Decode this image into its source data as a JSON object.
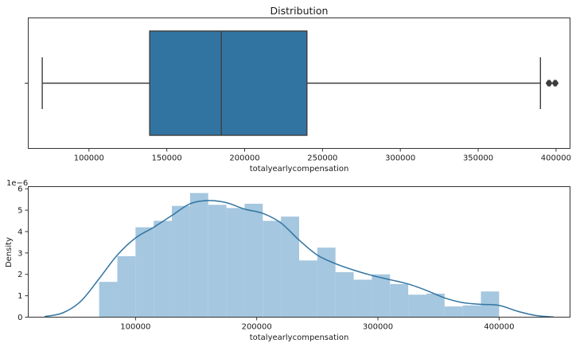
{
  "chart_data": [
    {
      "type": "box",
      "title": "Distribution",
      "xlabel": "totalyearlycompensation",
      "ylabel": "",
      "xlim": [
        61000,
        409000
      ],
      "xticks": [
        100000,
        150000,
        200000,
        250000,
        300000,
        350000,
        400000
      ],
      "xtick_labels": [
        "100000",
        "150000",
        "200000",
        "250000",
        "300000",
        "350000",
        "400000"
      ],
      "box": {
        "whisker_low": 70000,
        "q1": 139000,
        "median": 185000,
        "q3": 240000,
        "whisker_high": 390000,
        "outliers": [
          395000,
          396000,
          399000,
          400000
        ]
      },
      "color": "#3274a1",
      "line_color": "#3d3d3d"
    },
    {
      "type": "histogram",
      "xlabel": "totalyearlycompensation",
      "ylabel": "Density",
      "offset_label": "1e−6",
      "xlim": [
        11500,
        458500
      ],
      "ylim": [
        0,
        6.1
      ],
      "xticks": [
        100000,
        200000,
        300000,
        400000
      ],
      "xtick_labels": [
        "100000",
        "200000",
        "300000",
        "400000"
      ],
      "yticks": [
        0,
        1,
        2,
        3,
        4,
        5,
        6
      ],
      "ytick_labels": [
        "0",
        "1",
        "2",
        "3",
        "4",
        "5",
        "6"
      ],
      "bin_start": 70000,
      "bin_width": 15000,
      "density": [
        1.65,
        2.85,
        4.2,
        4.5,
        5.2,
        5.8,
        5.25,
        5.1,
        5.3,
        4.5,
        4.7,
        2.65,
        3.25,
        2.1,
        1.75,
        2.0,
        1.55,
        1.05,
        1.1,
        0.5,
        0.55,
        1.2
      ],
      "kde": {
        "x": [
          25000,
          40000,
          55000,
          70000,
          85000,
          100000,
          115000,
          130000,
          145000,
          160000,
          175000,
          190000,
          205000,
          220000,
          235000,
          250000,
          265000,
          280000,
          295000,
          310000,
          325000,
          340000,
          355000,
          370000,
          385000,
          400000,
          415000,
          430000,
          445000
        ],
        "y": [
          0.03,
          0.2,
          0.75,
          1.8,
          2.9,
          3.7,
          4.2,
          4.75,
          5.3,
          5.45,
          5.35,
          5.05,
          4.85,
          4.4,
          3.6,
          2.9,
          2.5,
          2.2,
          1.95,
          1.75,
          1.55,
          1.25,
          0.9,
          0.68,
          0.6,
          0.55,
          0.28,
          0.08,
          0.01
        ]
      },
      "bar_color": "#a5c7e0",
      "line_color": "#3274a1"
    }
  ]
}
